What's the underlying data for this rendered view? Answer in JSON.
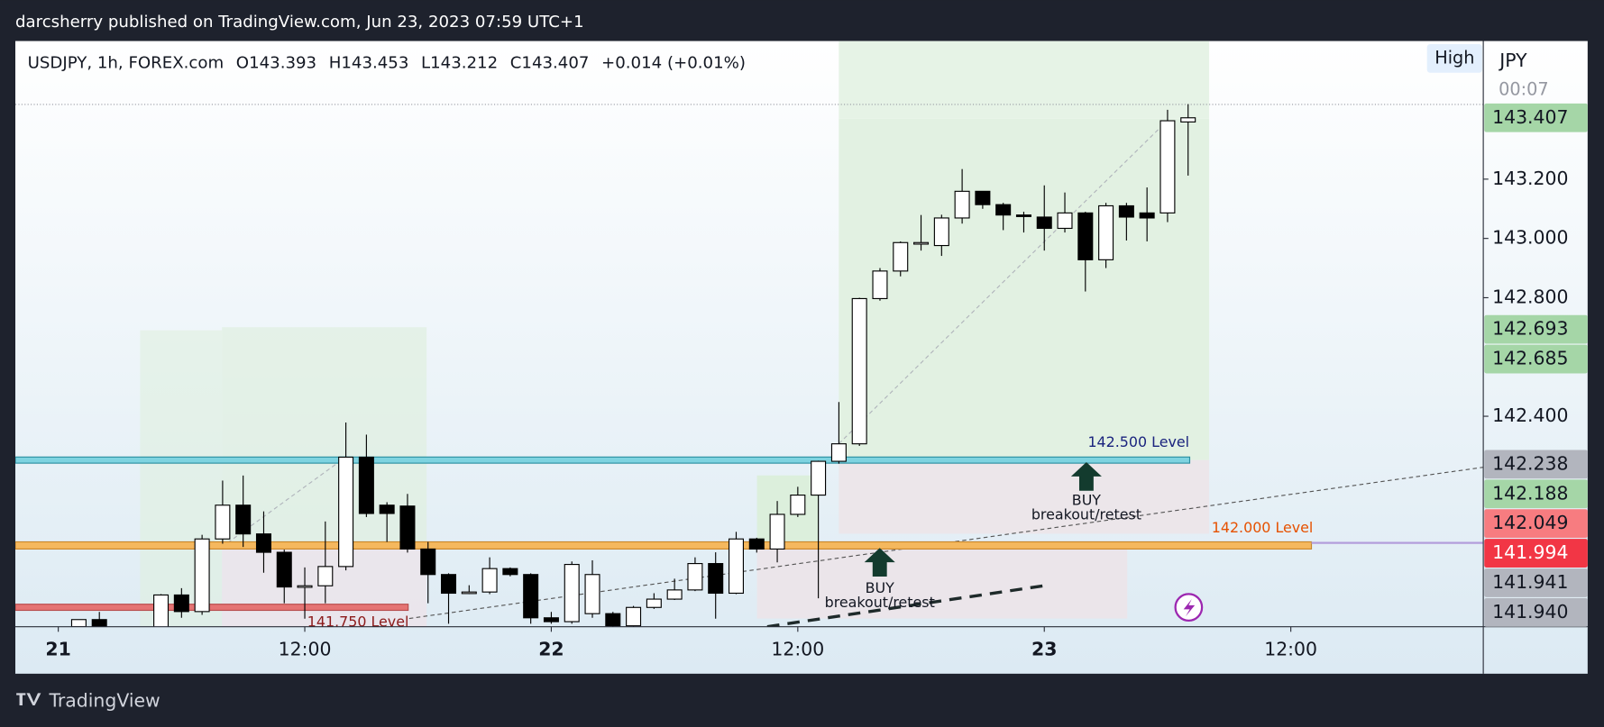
{
  "header": {
    "publisher": "darcsherry published on TradingView.com, Jun 23, 2023 07:59 UTC+1"
  },
  "chart_data": {
    "type": "candlestick",
    "symbol": "USDJPY, 1h, FOREX.com",
    "ohlc_legend": [
      "O143.393",
      "H143.453",
      "L143.212",
      "C143.407",
      "+0.014 (+0.01%)"
    ],
    "button": "High",
    "currency": "JPY",
    "countdown": "00:07",
    "x": [
      1,
      2,
      5,
      6,
      7,
      8,
      9,
      10,
      11,
      12,
      13,
      14,
      15,
      16,
      17,
      18,
      19,
      20,
      21,
      22,
      23,
      24,
      25,
      26,
      27,
      28,
      29,
      30,
      31,
      32,
      33,
      34,
      35,
      36,
      37,
      38,
      39,
      40,
      41,
      42,
      43,
      44,
      45,
      46,
      47,
      48,
      49,
      50,
      51,
      52,
      53,
      54,
      55
    ],
    "open": [
      141.69,
      141.714,
      141.68,
      141.797,
      141.741,
      141.986,
      142.1,
      142.003,
      141.941,
      141.824,
      141.828,
      141.893,
      142.262,
      142.1,
      142.097,
      141.952,
      141.866,
      141.803,
      141.807,
      141.886,
      141.866,
      141.72,
      141.707,
      141.734,
      141.734,
      141.693,
      141.755,
      141.783,
      141.814,
      141.903,
      141.803,
      141.986,
      141.952,
      142.069,
      142.134,
      142.248,
      142.307,
      142.797,
      142.89,
      142.986,
      142.976,
      143.069,
      143.159,
      143.114,
      143.079,
      143.072,
      143.034,
      143.086,
      142.928,
      143.11,
      143.086,
      143.086,
      143.393
    ],
    "high": [
      141.714,
      141.74,
      141.8,
      141.82,
      142.0,
      142.183,
      142.2,
      142.079,
      141.95,
      141.89,
      142.045,
      142.379,
      142.338,
      142.11,
      142.138,
      141.976,
      141.87,
      141.83,
      141.924,
      141.89,
      141.87,
      141.74,
      141.91,
      141.914,
      141.74,
      141.76,
      141.803,
      141.852,
      141.924,
      141.941,
      142.01,
      141.99,
      142.114,
      142.162,
      142.25,
      142.448,
      142.8,
      142.9,
      142.99,
      143.079,
      143.08,
      143.234,
      143.16,
      143.12,
      143.09,
      143.179,
      143.155,
      143.09,
      143.12,
      143.12,
      143.172,
      143.434,
      143.453
    ],
    "low": [
      141.69,
      141.69,
      141.66,
      141.72,
      141.73,
      141.97,
      141.959,
      141.872,
      141.769,
      141.717,
      141.769,
      141.88,
      142.06,
      141.976,
      141.94,
      141.769,
      141.7,
      141.8,
      141.8,
      141.86,
      141.7,
      141.7,
      141.7,
      141.72,
      141.69,
      141.69,
      141.75,
      141.78,
      141.81,
      141.717,
      141.8,
      141.94,
      141.907,
      142.06,
      141.786,
      142.24,
      142.3,
      142.79,
      142.872,
      142.959,
      142.941,
      143.05,
      143.1,
      143.028,
      143.02,
      142.959,
      143.02,
      142.821,
      142.9,
      142.993,
      142.99,
      143.055,
      143.212
    ],
    "close": [
      141.714,
      141.69,
      141.797,
      141.741,
      141.986,
      142.1,
      142.003,
      141.941,
      141.824,
      141.828,
      141.893,
      142.262,
      142.072,
      142.072,
      141.952,
      141.866,
      141.803,
      141.807,
      141.886,
      141.866,
      141.72,
      141.707,
      141.9,
      141.866,
      141.693,
      141.755,
      141.783,
      141.814,
      141.903,
      141.803,
      141.986,
      141.952,
      142.069,
      142.134,
      142.248,
      142.307,
      142.797,
      142.89,
      142.986,
      142.986,
      143.069,
      143.159,
      143.114,
      143.079,
      143.076,
      143.034,
      143.086,
      142.928,
      143.11,
      143.072,
      143.069,
      143.397,
      143.407
    ],
    "up_color": "#ffffff",
    "down_color": "#000000",
    "xlim": [
      -2.09,
      69.37
    ],
    "xticks": [
      {
        "value": 0,
        "label": "21"
      },
      {
        "value": 12,
        "label": "12:00"
      },
      {
        "value": 24,
        "label": "22"
      },
      {
        "value": 36,
        "label": "12:00"
      },
      {
        "value": 48,
        "label": "23"
      },
      {
        "value": 60,
        "label": "12:00"
      }
    ],
    "ylim": [
      141.69,
      143.666
    ],
    "yticks": [
      {
        "value": 143.2,
        "label": "143.200"
      },
      {
        "value": 143.0,
        "label": "143.000"
      },
      {
        "value": 142.8,
        "label": "142.800"
      },
      {
        "value": 142.4,
        "label": "142.400"
      }
    ],
    "price_labels": [
      {
        "value": 143.407,
        "label": "143.407",
        "color": "#a5d6a7"
      },
      {
        "value": 142.693,
        "label": "142.693",
        "color": "#a5d6a7"
      },
      {
        "value": 142.685,
        "label": "142.685",
        "color": "#a5d6a7"
      },
      {
        "value": 142.238,
        "label": "142.238",
        "color": "#b2b5be"
      },
      {
        "value": 142.188,
        "label": "142.188",
        "color": "#a5d6a7"
      },
      {
        "value": 142.049,
        "label": "142.049",
        "color": "#f77c80"
      },
      {
        "value": 141.994,
        "label": "141.994",
        "color": "#f23645"
      },
      {
        "value": 141.941,
        "label": "141.941",
        "color": "#b2b5be"
      },
      {
        "value": 141.94,
        "label": "141.940",
        "color": "#b2b5be"
      }
    ],
    "annotations": [
      "142.500 Level",
      "142.000 Level",
      "141.750 Level",
      "BUY",
      "breakout/retest",
      "BUY",
      "breakout/retest"
    ]
  },
  "footer": {
    "brand": "TradingView"
  }
}
